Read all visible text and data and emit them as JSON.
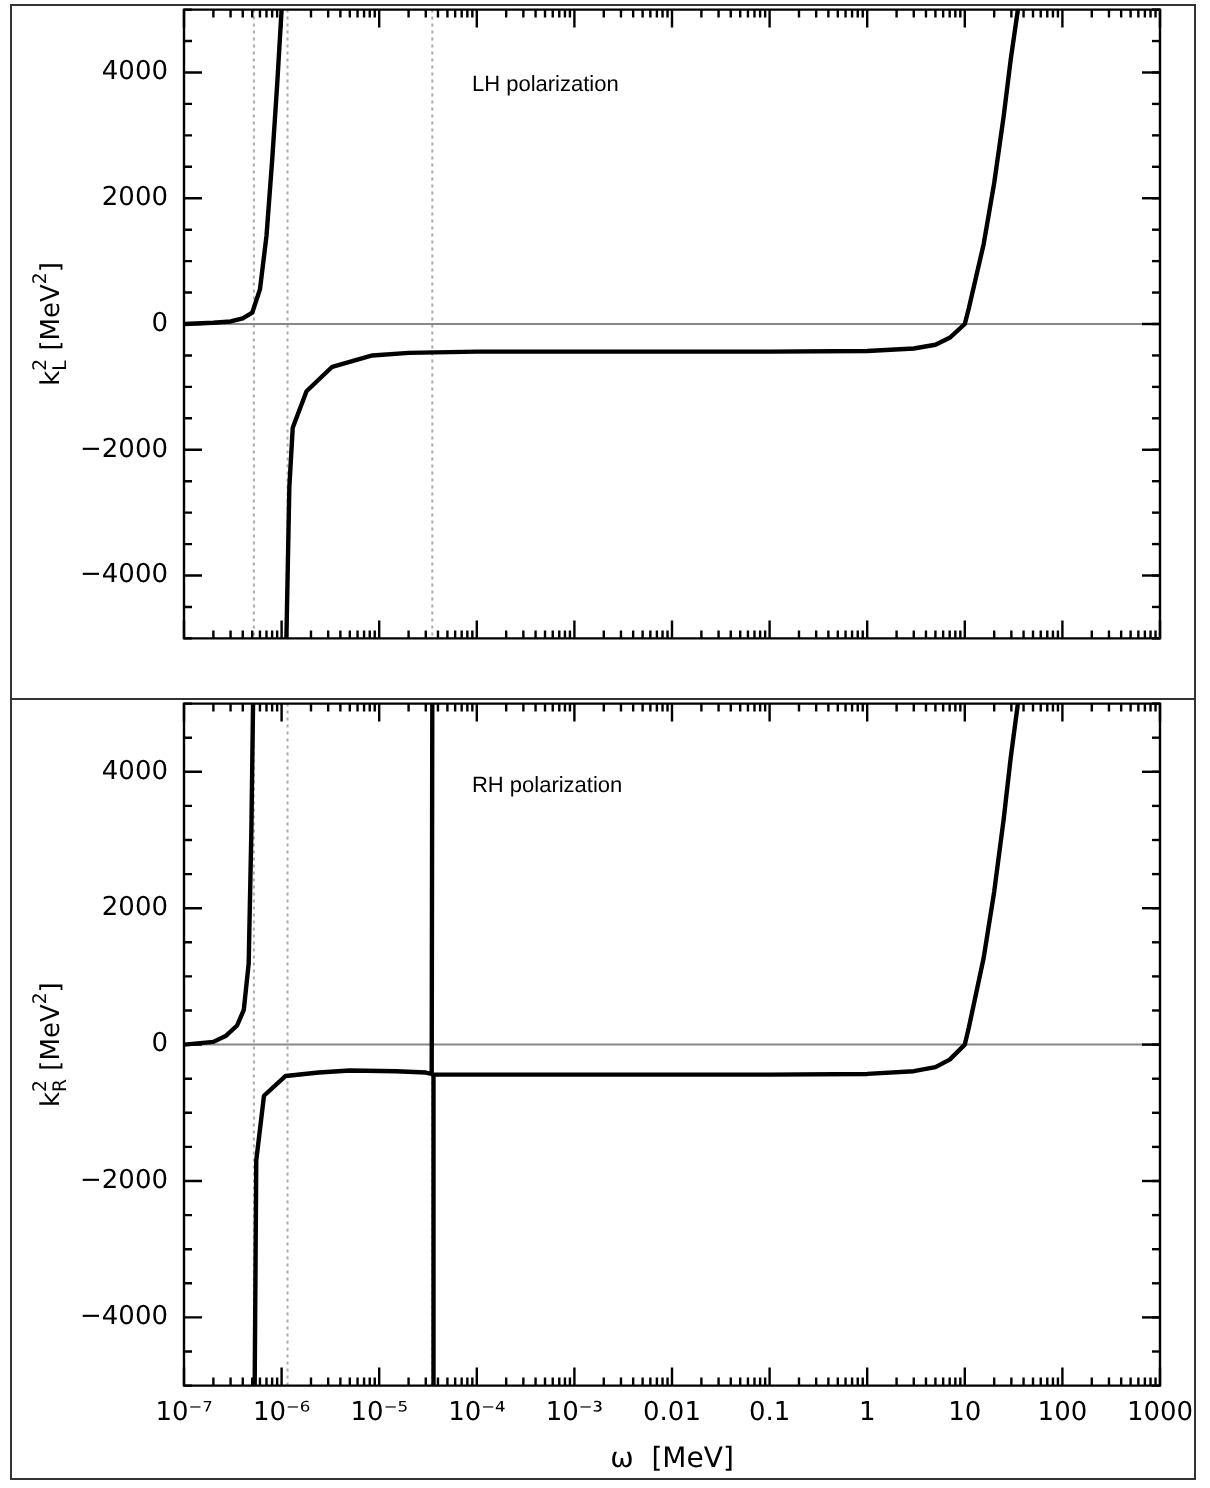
{
  "chart_data": [
    {
      "type": "line",
      "ylabel": "k$_{L}$$^{2}$ [MeV$^{2}$]",
      "annotations": [
        "LH polarization"
      ],
      "log": "x",
      "tick_labels": "y",
      "xlim": [
        1e-07,
        1000
      ],
      "ylim": [
        -5000,
        5000
      ],
      "xticks": [
        1e-07,
        1e-06,
        1e-05,
        0.0001,
        0.001,
        0.01,
        0.1,
        1,
        10,
        100,
        1000
      ],
      "yticks": [
        -4000,
        -2000,
        0,
        2000,
        4000
      ],
      "ref_lines": [
        {
          "axis": "x",
          "value": 5.2e-07,
          "color": "#aaaaaa",
          "line_style": "dotted"
        },
        {
          "axis": "x",
          "value": 1.15e-06,
          "color": "#aaaaaa",
          "line_style": "dotted"
        },
        {
          "axis": "x",
          "value": 3.5e-05,
          "color": "#aaaaaa",
          "line_style": "dotted"
        },
        {
          "axis": "y",
          "value": 0,
          "color": "#888888",
          "line_style": "solid"
        }
      ],
      "series": [
        {
          "color": "#000000",
          "x": [
            1e-07,
            2e-07,
            3e-07,
            4e-07,
            5e-07,
            6e-07,
            7e-07,
            8e-07,
            9e-07,
            1e-06
          ],
          "values": [
            0,
            20,
            40,
            90,
            180,
            550,
            1400,
            2600,
            3800,
            5000
          ]
        },
        {
          "color": "#000000",
          "x": [
            1.12e-06,
            1.2e-06,
            1.3e-06,
            1.8e-06,
            3.3e-06,
            8.5e-06,
            2e-05,
            0.0001,
            0.001,
            0.1,
            1,
            3,
            5,
            7,
            10,
            11,
            15.6,
            20,
            25,
            29.5,
            35
          ],
          "values": [
            -5000,
            -2600,
            -1650,
            -1070,
            -680,
            -500,
            -460,
            -440,
            -440,
            -440,
            -430,
            -390,
            -330,
            -220,
            0,
            250,
            1270,
            2240,
            3300,
            4200,
            5000
          ]
        }
      ]
    },
    {
      "type": "line",
      "xlabel": "ω  [MeV]",
      "ylabel": "k$_{R}$$^{2}$ [MeV$^{2}$]",
      "annotations": [
        "RH polarization"
      ],
      "log": "x",
      "xlim": [
        1e-07,
        1000
      ],
      "ylim": [
        -5000,
        5000
      ],
      "xticks": [
        {
          "value": 1e-07,
          "label": "10⁻⁷"
        },
        {
          "value": 1e-06,
          "label": "10⁻⁶"
        },
        {
          "value": 1e-05,
          "label": "10⁻⁵"
        },
        {
          "value": 0.0001,
          "label": "10⁻⁴"
        },
        {
          "value": 0.001,
          "label": "10⁻³"
        },
        0.01,
        0.1,
        1,
        10,
        100,
        1000
      ],
      "yticks": [
        -4000,
        -2000,
        0,
        2000,
        4000
      ],
      "ref_lines": [
        {
          "axis": "x",
          "value": 5.2e-07,
          "color": "#aaaaaa",
          "line_style": "dotted"
        },
        {
          "axis": "x",
          "value": 1.15e-06,
          "color": "#aaaaaa",
          "line_style": "dotted"
        },
        {
          "axis": "x",
          "value": 3.5e-05,
          "color": "#aaaaaa",
          "line_style": "dotted"
        },
        {
          "axis": "y",
          "value": 0,
          "color": "#888888",
          "line_style": "solid"
        }
      ],
      "series": [
        {
          "color": "#000000",
          "x": [
            1e-07,
            2e-07,
            2.7e-07,
            3.5e-07,
            4.1e-07,
            4.6e-07,
            4.9e-07,
            5.1e-07
          ],
          "values": [
            0,
            40,
            130,
            280,
            510,
            1190,
            3130,
            5000
          ]
        },
        {
          "color": "#000000",
          "x": [
            5.3e-07,
            5.5e-07,
            6.6e-07,
            1.1e-06,
            2.4e-06,
            5e-06,
            1.5e-05,
            3e-05,
            3.45e-05,
            3.5e-05
          ],
          "values": [
            -5000,
            -1700,
            -750,
            -460,
            -410,
            -380,
            -390,
            -410,
            -430,
            5000
          ]
        },
        {
          "color": "#000000",
          "x": [
            3.55e-05,
            3.6e-05,
            0.0001,
            0.001,
            0.1,
            1,
            3,
            5,
            7,
            10,
            11,
            15.6,
            20,
            25,
            29.5,
            35
          ],
          "values": [
            -5000,
            -440,
            -440,
            -440,
            -440,
            -430,
            -390,
            -330,
            -220,
            0,
            250,
            1270,
            2240,
            3300,
            4200,
            5000
          ]
        }
      ]
    }
  ]
}
